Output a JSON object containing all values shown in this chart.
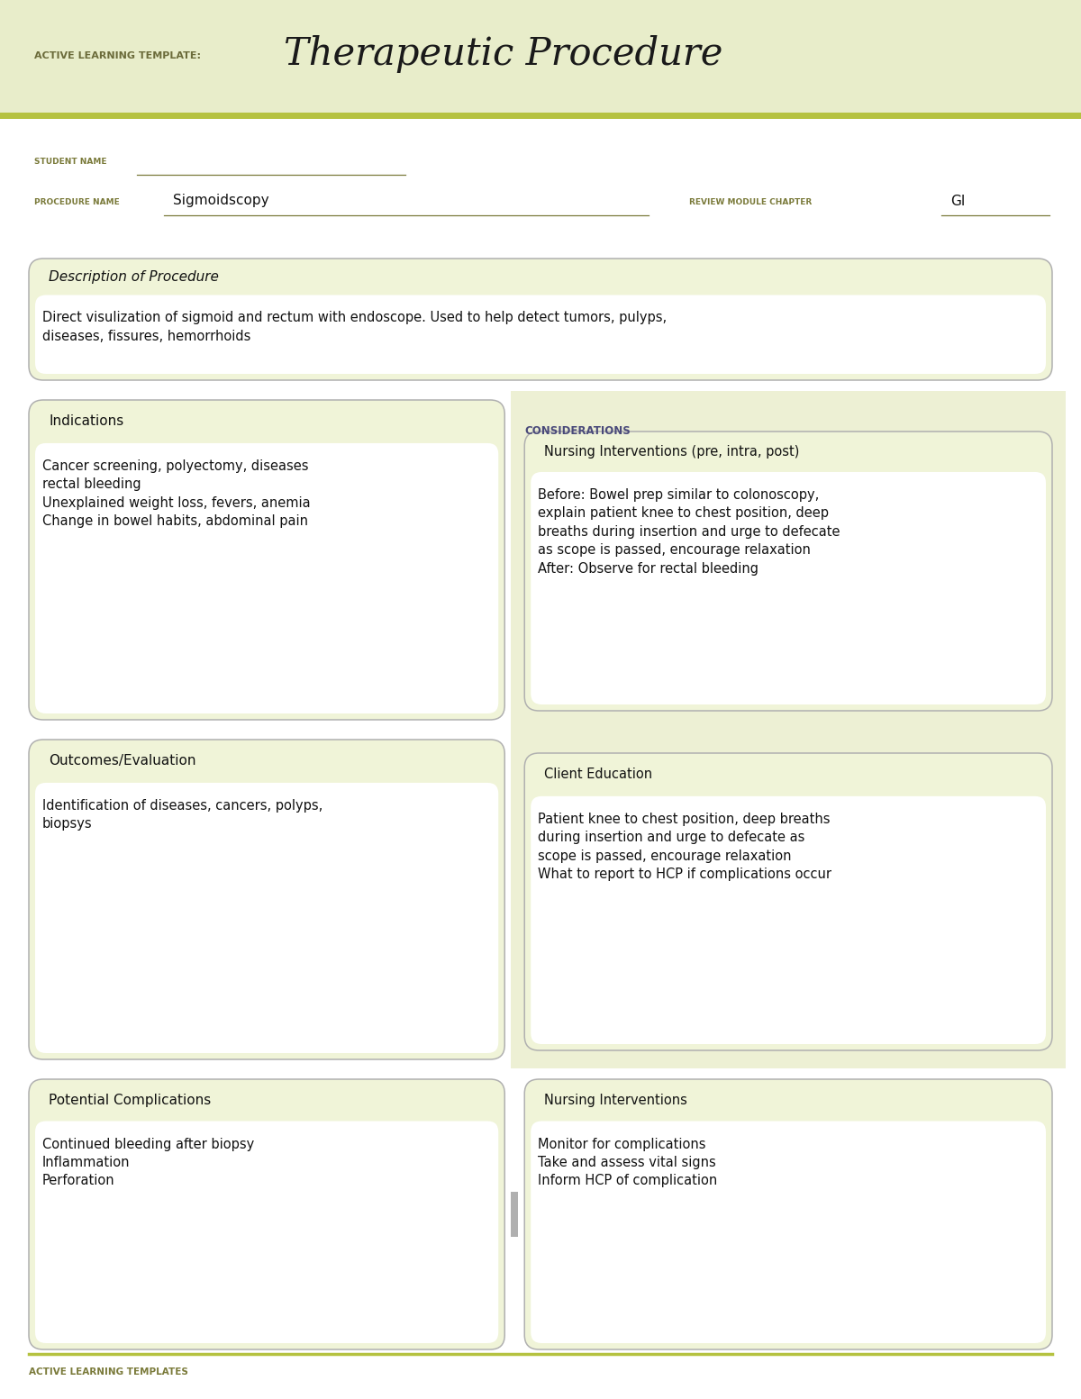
{
  "bg_color": "#ffffff",
  "header_bg": "#e8edca",
  "header_stripe_color": "#b5c240",
  "header_label_color": "#6b6b3a",
  "header_title_color": "#1a1a1a",
  "label_color": "#7a7a3a",
  "box_bg": "#f0f4d8",
  "box_border": "#b0b0b0",
  "text_color": "#111111",
  "considerations_color": "#4a4a7a",
  "considerations_panel_bg": "#edf0d4",
  "title_label": "ACTIVE LEARNING TEMPLATE:",
  "title_main": "Therapeutic Procedure",
  "student_name_label": "STUDENT NAME",
  "procedure_name_label": "PROCEDURE NAME",
  "procedure_name_value": "Sigmoidscopy",
  "review_module_label": "REVIEW MODULE CHAPTER",
  "review_module_value": "GI",
  "desc_section_title": "Description of Procedure",
  "desc_text": "Direct visulization of sigmoid and rectum with endoscope. Used to help detect tumors, pulyps,\ndiseases, fissures, hemorrhoids",
  "indications_title": "Indications",
  "indications_text": "Cancer screening, polyectomy, diseases\nrectal bleeding\nUnexplained weight loss, fevers, anemia\nChange in bowel habits, abdominal pain",
  "considerations_label": "CONSIDERATIONS",
  "nursing_interventions_title": "Nursing Interventions (pre, intra, post)",
  "nursing_interventions_text": "Before: Bowel prep similar to colonoscopy,\nexplain patient knee to chest position, deep\nbreaths during insertion and urge to defecate\nas scope is passed, encourage relaxation\nAfter: Observe for rectal bleeding",
  "outcomes_title": "Outcomes/Evaluation",
  "outcomes_text": "Identification of diseases, cancers, polyps,\nbiopsys",
  "client_education_title": "Client Education",
  "client_education_text": "Patient knee to chest position, deep breaths\nduring insertion and urge to defecate as\nscope is passed, encourage relaxation\nWhat to report to HCP if complications occur",
  "potential_complications_title": "Potential Complications",
  "potential_complications_text": "Continued bleeding after biopsy\nInflammation\nPerforation",
  "nursing_interventions2_title": "Nursing Interventions",
  "nursing_interventions2_text": "Monitor for complications\nTake and assess vital signs\nInform HCP of complication",
  "footer_text": "ACTIVE LEARNING TEMPLATES",
  "divider_color": "#b0b0b0"
}
